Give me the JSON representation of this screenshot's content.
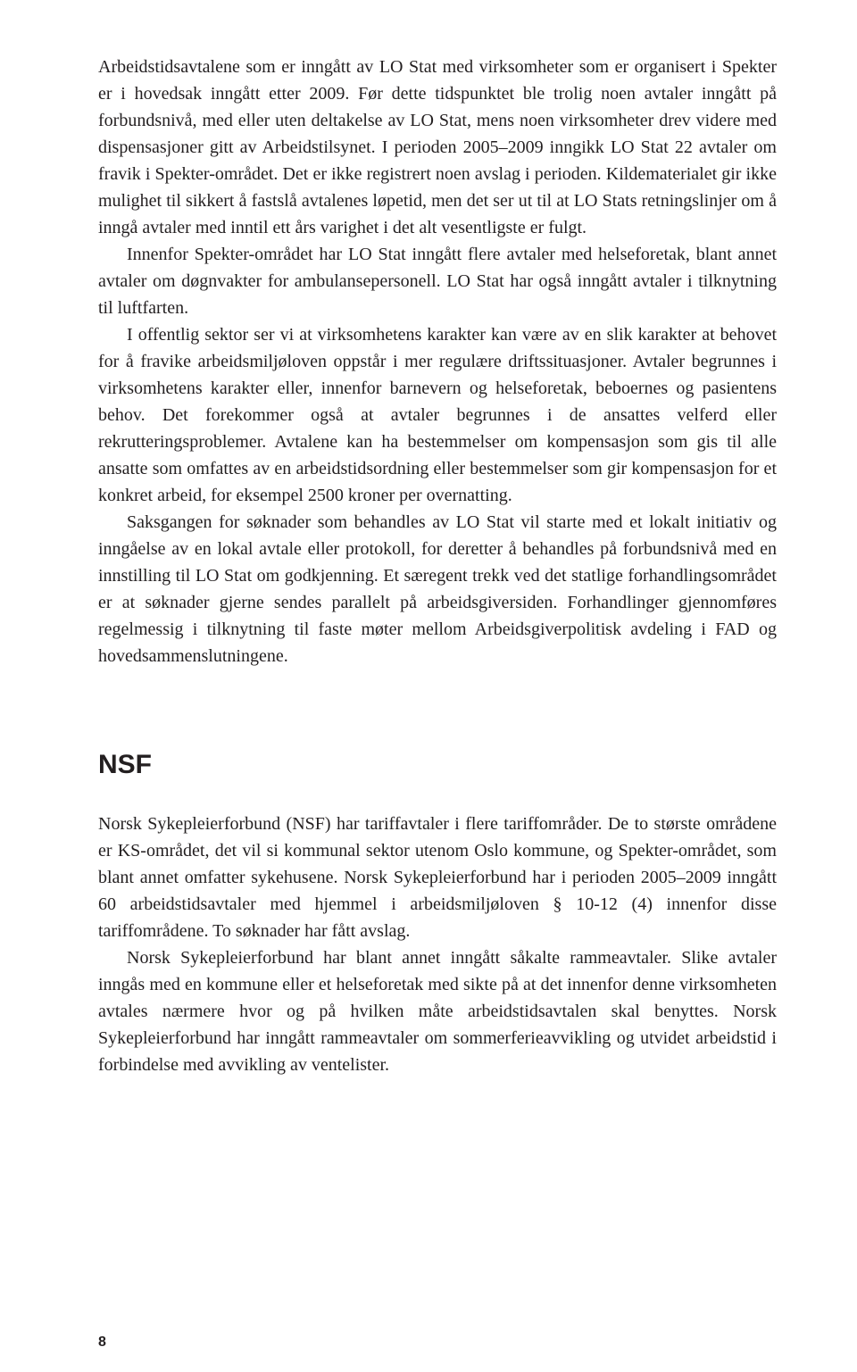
{
  "para1": "Arbeidstidsavtalene som er inngått av LO Stat med virksomheter som er organisert i Spekter er i hovedsak inngått etter 2009. Før dette tidspunktet ble trolig noen avtaler inngått på forbundsnivå, med eller uten deltakelse av LO Stat, mens noen virksomheter drev videre med dispensasjoner gitt av Arbeidstilsynet. I perioden 2005–2009 inngikk LO Stat 22 avtaler om fravik i Spekter-området. Det er ikke registrert noen avslag i perioden. Kildematerialet gir ikke mulighet til sikkert å fastslå avtalenes løpetid, men det ser ut til at LO Stats retningslinjer om å inngå avtaler med inntil ett års varighet i det alt vesentligste er fulgt.",
  "para2": "Innenfor Spekter-området har LO Stat inngått flere avtaler med helseforetak, blant annet avtaler om døgnvakter for ambulansepersonell. LO Stat har også inngått avtaler i tilknytning til luftfarten.",
  "para3": "I offentlig sektor ser vi at virksomhetens karakter kan være av en slik karakter at behovet for å fravike arbeidsmiljøloven oppstår i mer regulære driftssituasjoner. Avtaler begrunnes i virksomhetens karakter eller, innenfor barnevern og helseforetak, beboernes og pasientens behov. Det forekommer også at avtaler begrunnes i de ansattes velferd eller rekrutteringsproblemer. Avtalene kan ha bestemmelser om kompensasjon som gis til alle ansatte som omfattes av en arbeidstidsordning eller bestemmelser som gir kompensasjon for et konkret arbeid, for eksempel 2500 kroner per overnatting.",
  "para4": "Saksgangen for søknader som behandles av LO Stat vil starte med et lokalt initiativ og inngåelse av en lokal avtale eller protokoll, for deretter å behandles på forbundsnivå med en innstilling til LO Stat om godkjenning. Et særegent trekk ved det statlige forhandlingsområdet er at søknader gjerne sendes parallelt på arbeidsgiversiden. Forhandlinger gjennomføres regelmessig i tilknytning til faste møter mellom Arbeidsgiverpolitisk avdeling i FAD og hovedsammenslutningene.",
  "heading": "NSF",
  "para5": "Norsk Sykepleierforbund (NSF) har tariffavtaler i flere tariffområder. De to største områdene er KS-området, det vil si kommunal sektor utenom Oslo kommune, og Spekter-området, som blant annet omfatter sykehusene. Norsk Sykepleierforbund har i perioden 2005–2009 inngått 60 arbeidstidsavtaler med hjemmel i arbeidsmiljøloven § 10-12 (4) innenfor disse tariffområdene. To søknader har fått avslag.",
  "para6": "Norsk Sykepleierforbund har blant annet inngått såkalte rammeavtaler. Slike avtaler inngås med en kommune eller et helseforetak med sikte på at det innenfor denne virksomheten avtales nærmere hvor og på hvilken måte arbeidstidsavtalen skal benyttes. Norsk Sykepleierforbund har inngått rammeavtaler om sommerferieavvikling og utvidet arbeidstid i forbindelse med avvikling av ventelister.",
  "pageNumber": "8"
}
